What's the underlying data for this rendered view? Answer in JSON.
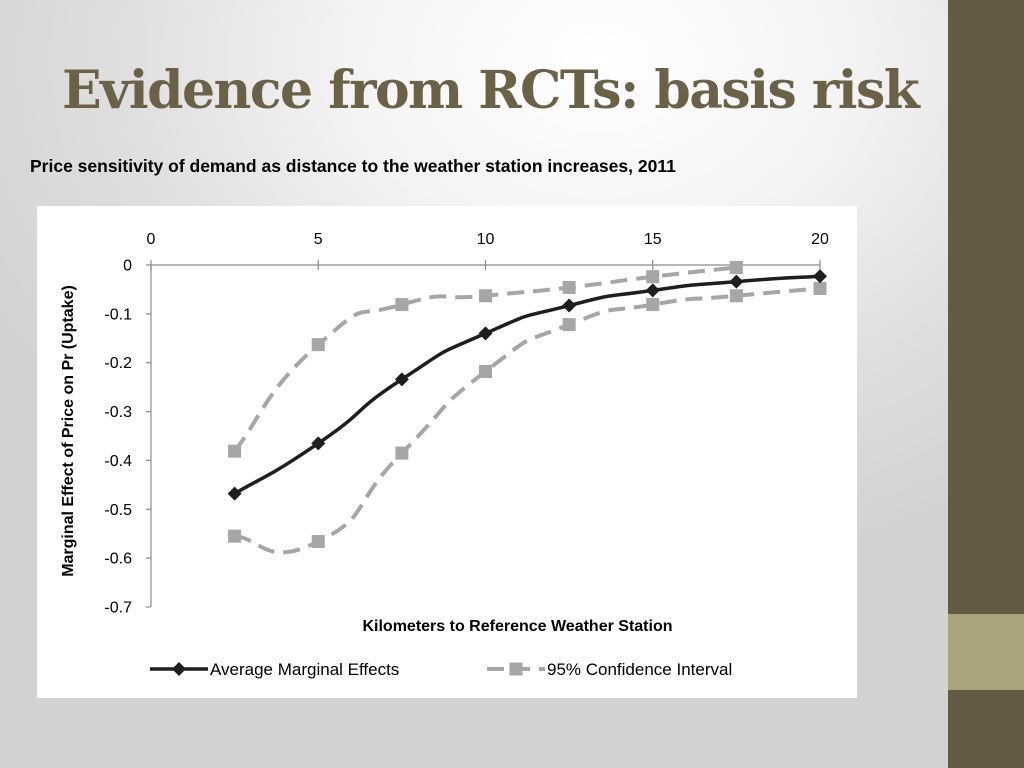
{
  "slide": {
    "title": "Evidence from RCTs: basis risk",
    "subtitle": "Price sensitivity of demand as distance to the weather station increases, 2011"
  },
  "colors": {
    "title": "#6b6146",
    "side_dark": "#655b45",
    "side_light": "#aaa47c",
    "avg_line": "#1e1e1e",
    "ci_line": "#a6a6a6"
  },
  "chart_data": {
    "type": "line",
    "title": "",
    "xlabel": "Kilometers to Reference Weather Station",
    "ylabel": "Marginal Effect of Price on Pr (Uptake)",
    "x_axis_position": "top",
    "xlim": [
      0,
      20
    ],
    "ylim": [
      -0.7,
      0
    ],
    "x_ticks": [
      0,
      5,
      10,
      15,
      20
    ],
    "x_tick_labels": [
      "0",
      "5",
      "10",
      "15",
      "20"
    ],
    "y_ticks": [
      0,
      -0.1,
      -0.2,
      -0.3,
      -0.4,
      -0.5,
      -0.6,
      -0.7
    ],
    "y_tick_labels": [
      "0",
      "-0.1",
      "-0.2",
      "-0.3",
      "-0.4",
      "-0.5",
      "-0.6",
      "-0.7"
    ],
    "grid": false,
    "legend_position": "bottom",
    "x": [
      2.5,
      5,
      7.5,
      10,
      12.5,
      15,
      17.5,
      20
    ],
    "series": [
      {
        "name": "Average Marginal Effects",
        "style": "solid",
        "marker": "diamond",
        "values": [
          -0.468,
          -0.365,
          -0.234,
          -0.14,
          -0.083,
          -0.052,
          -0.034,
          -0.023
        ]
      },
      {
        "name": "95% Confidence Interval",
        "style": "dashed",
        "marker": "square",
        "values": [
          -0.381,
          -0.163,
          -0.081,
          -0.063,
          -0.046,
          -0.024,
          -0.005,
          null
        ]
      },
      {
        "name": "95% Confidence Interval",
        "style": "dashed",
        "marker": "square",
        "values": [
          -0.555,
          -0.566,
          -0.385,
          -0.218,
          -0.122,
          -0.081,
          -0.063,
          -0.048
        ]
      }
    ],
    "legend": [
      {
        "label": "Average Marginal Effects",
        "style": "solid",
        "marker": "diamond"
      },
      {
        "label": "95% Confidence Interval",
        "style": "dashed",
        "marker": "square"
      }
    ]
  }
}
